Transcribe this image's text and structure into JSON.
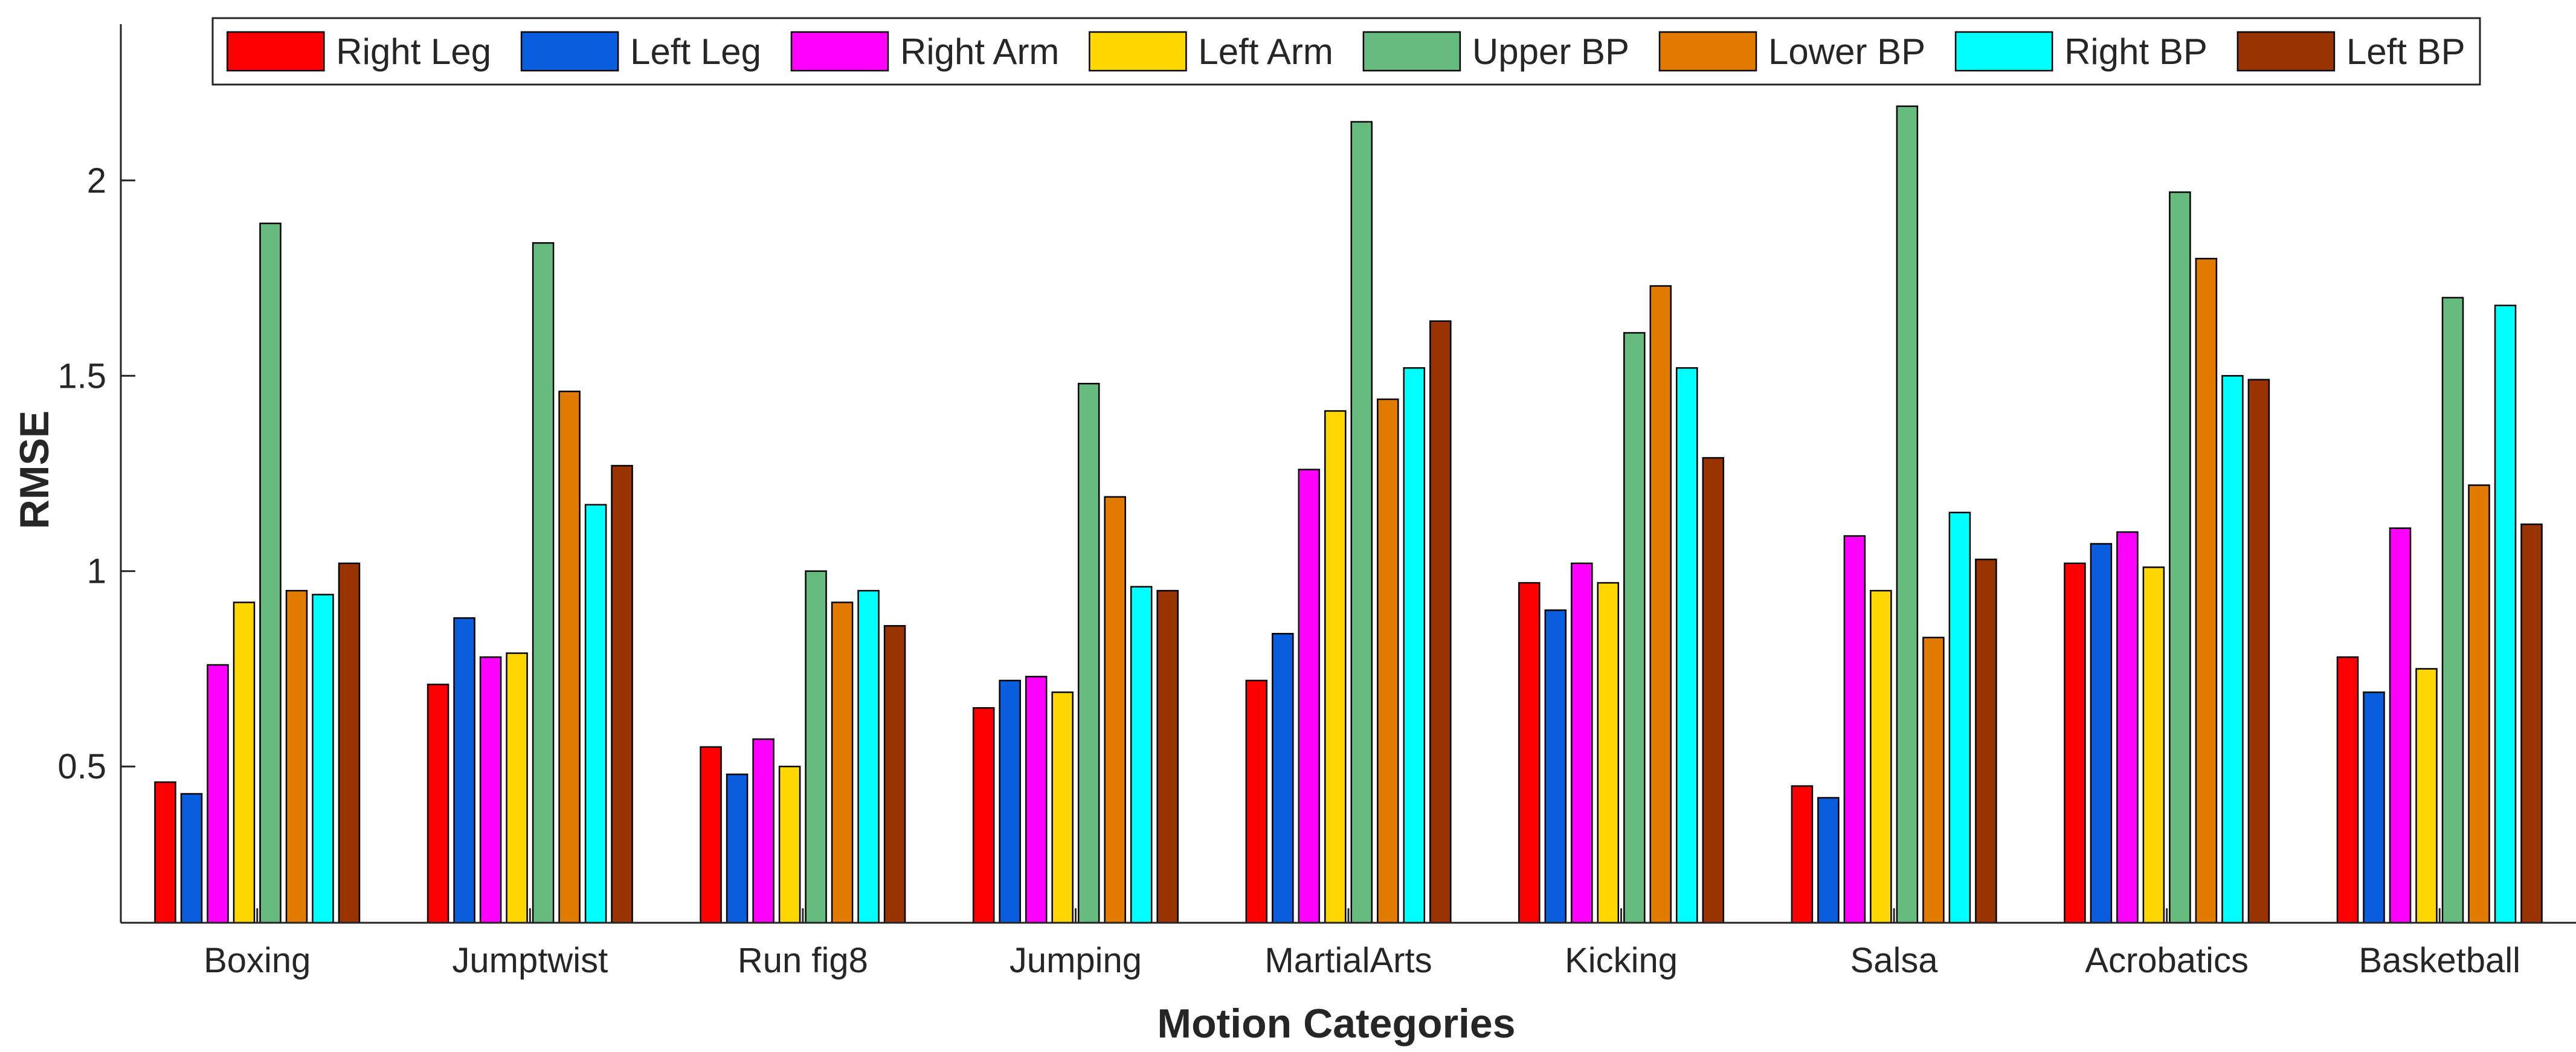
{
  "chart_data": {
    "type": "bar",
    "title": "",
    "xlabel": "Motion Categories",
    "ylabel": "RMSE",
    "ylim": [
      0.1,
      2.4
    ],
    "yticks": [
      0.5,
      1,
      1.5,
      2
    ],
    "ytick_labels": [
      "0.5",
      "1",
      "1.5",
      "2"
    ],
    "grid": false,
    "legend_position": "top",
    "categories": [
      "Boxing",
      "Jumptwist",
      "Run fig8",
      "Jumping",
      "MartialArts",
      "Kicking",
      "Salsa",
      "Acrobatics",
      "Basketball"
    ],
    "series": [
      {
        "name": "Right Leg",
        "color": "#ff0000",
        "values": [
          0.46,
          0.71,
          0.55,
          0.65,
          0.72,
          0.97,
          0.45,
          1.02,
          0.78
        ]
      },
      {
        "name": "Left Leg",
        "color": "#0a5ede",
        "values": [
          0.43,
          0.88,
          0.48,
          0.72,
          0.84,
          0.9,
          0.42,
          1.07,
          0.69
        ]
      },
      {
        "name": "Right Arm",
        "color": "#ff00ff",
        "values": [
          0.76,
          0.78,
          0.57,
          0.73,
          1.26,
          1.02,
          1.09,
          1.1,
          1.11
        ]
      },
      {
        "name": "Left Arm",
        "color": "#ffd700",
        "values": [
          0.92,
          0.79,
          0.5,
          0.69,
          1.41,
          0.97,
          0.95,
          1.01,
          0.75
        ]
      },
      {
        "name": "Upper BP",
        "color": "#66bb7f",
        "values": [
          1.89,
          1.84,
          1.0,
          1.48,
          2.15,
          1.61,
          2.19,
          1.97,
          1.7
        ]
      },
      {
        "name": "Lower BP",
        "color": "#e07b00",
        "values": [
          0.95,
          1.46,
          0.92,
          1.19,
          1.44,
          1.73,
          0.83,
          1.8,
          1.22
        ]
      },
      {
        "name": "Right BP",
        "color": "#00ffff",
        "values": [
          0.94,
          1.17,
          0.95,
          0.96,
          1.52,
          1.52,
          1.15,
          1.5,
          1.68
        ]
      },
      {
        "name": "Left BP",
        "color": "#993300",
        "values": [
          1.02,
          1.27,
          0.86,
          0.95,
          1.64,
          1.29,
          1.03,
          1.49,
          1.12
        ]
      }
    ]
  }
}
